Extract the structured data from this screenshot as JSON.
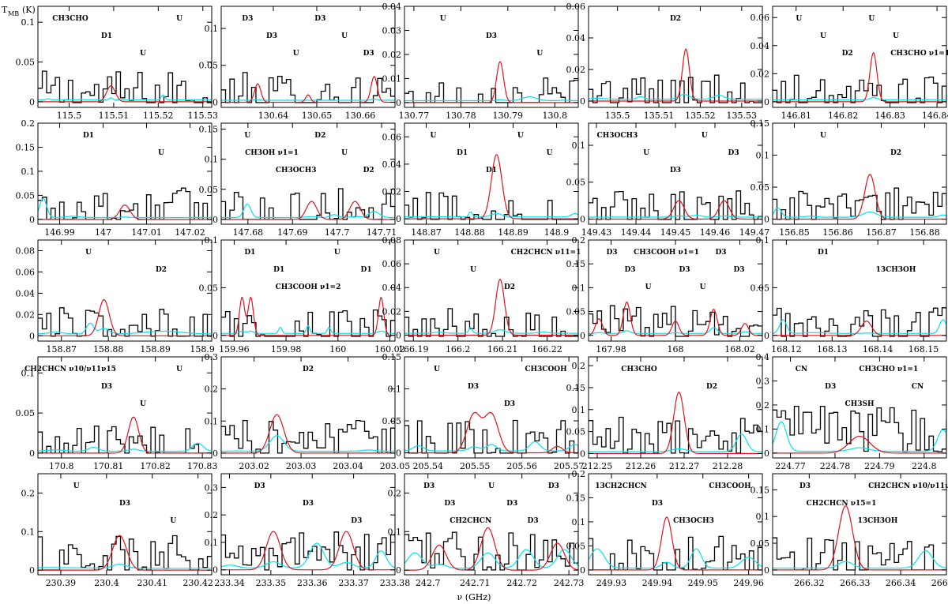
{
  "figure": {
    "y_axis_title": "T",
    "y_axis_title_sub": "MB",
    "y_axis_unit": "(K)",
    "x_axis_title": "ν (GHz)"
  },
  "colors": {
    "observed": "#000000",
    "full_model": "#00e5ee",
    "fit_model": "#e0141e",
    "frame": "#000000"
  },
  "chart_data": [
    {
      "type": "line",
      "xlim": [
        115.493,
        115.532
      ],
      "ylim": [
        -0.007,
        0.12
      ],
      "xticks": [
        115.5,
        115.51,
        115.52,
        115.53
      ],
      "yticks": [
        0,
        0.05,
        0.1
      ],
      "series": [],
      "annotations": [
        "CH3CHO",
        "D1",
        "U",
        "U"
      ]
    },
    {
      "type": "line",
      "xlim": [
        130.628,
        130.668
      ],
      "ylim": [
        -0.007,
        0.13
      ],
      "xticks": [
        130.64,
        130.65,
        130.66
      ],
      "yticks": [
        0,
        0.05,
        0.1
      ],
      "series": [],
      "annotations": [
        "D3",
        "D3",
        "U",
        "D3",
        "U",
        "D3"
      ]
    },
    {
      "type": "line",
      "xlim": [
        130.768,
        130.805
      ],
      "ylim": [
        -0.002,
        0.04
      ],
      "xticks": [
        130.77,
        130.78,
        130.79,
        130.8
      ],
      "yticks": [
        0,
        0.01,
        0.02,
        0.03,
        0.04
      ],
      "series": [],
      "annotations": [
        "U",
        "D3",
        "U"
      ]
    },
    {
      "type": "line",
      "xlim": [
        135.493,
        135.535
      ],
      "ylim": [
        -0.004,
        0.06
      ],
      "xticks": [
        135.5,
        135.51,
        135.52,
        135.53
      ],
      "yticks": [
        0,
        0.02,
        0.04,
        0.06
      ],
      "series": [],
      "annotations": [
        "D2"
      ]
    },
    {
      "type": "line",
      "xlim": [
        146.805,
        146.842
      ],
      "ylim": [
        -0.004,
        0.068
      ],
      "xticks": [
        146.81,
        146.82,
        146.83,
        146.84
      ],
      "yticks": [
        0,
        0.02,
        0.04,
        0.06
      ],
      "series": [],
      "annotations": [
        "U",
        "U",
        "D2",
        "U",
        "U",
        "CH3CHO ν1=1"
      ]
    },
    {
      "type": "line",
      "xlim": [
        146.985,
        147.025
      ],
      "ylim": [
        -0.01,
        0.2
      ],
      "xticks": [
        146.99,
        147,
        147.01,
        147.02
      ],
      "yticks": [
        0,
        0.05,
        0.1,
        0.15,
        0.2
      ],
      "series": [],
      "annotations": [
        "D1",
        "U"
      ]
    },
    {
      "type": "line",
      "xlim": [
        147.674,
        147.713
      ],
      "ylim": [
        -0.008,
        0.16
      ],
      "xticks": [
        147.68,
        147.69,
        147.7,
        147.71
      ],
      "yticks": [
        0,
        0.05,
        0.1,
        0.15
      ],
      "series": [],
      "annotations": [
        "U",
        "CH3OH ν1=1",
        "CH3OCH3",
        "D2",
        "U",
        "D2"
      ]
    },
    {
      "type": "line",
      "xlim": [
        148.865,
        148.905
      ],
      "ylim": [
        -0.004,
        0.07
      ],
      "xticks": [
        148.87,
        148.88,
        148.89,
        148.9
      ],
      "yticks": [
        0,
        0.02,
        0.04,
        0.06
      ],
      "series": [],
      "annotations": [
        "U",
        "D1",
        "D1",
        "U",
        "U"
      ]
    },
    {
      "type": "line",
      "xlim": [
        149.428,
        149.472
      ],
      "ylim": [
        -0.007,
        0.13
      ],
      "xticks": [
        149.43,
        149.44,
        149.45,
        149.46,
        149.47
      ],
      "yticks": [
        0,
        0.05,
        0.1
      ],
      "series": [],
      "annotations": [
        "CH3OCH3",
        "U",
        "D3",
        "U",
        "D3"
      ]
    },
    {
      "type": "line",
      "xlim": [
        156.845,
        156.885
      ],
      "ylim": [
        -0.008,
        0.15
      ],
      "xticks": [
        156.85,
        156.86,
        156.87,
        156.88
      ],
      "yticks": [
        0,
        0.05,
        0.1,
        0.15
      ],
      "series": [],
      "annotations": [
        "U",
        "D2"
      ]
    },
    {
      "type": "line",
      "xlim": [
        158.865,
        158.902
      ],
      "ylim": [
        -0.005,
        0.09
      ],
      "xticks": [
        158.87,
        158.88,
        158.89,
        158.9
      ],
      "yticks": [
        0,
        0.02,
        0.04,
        0.06,
        0.08
      ],
      "series": [],
      "annotations": [
        "U",
        "D2"
      ]
    },
    {
      "type": "line",
      "xlim": [
        159.955,
        160.022
      ],
      "ylim": [
        -0.006,
        0.1
      ],
      "xticks": [
        159.96,
        159.98,
        160,
        160.02
      ],
      "yticks": [
        0,
        0.05,
        0.1
      ],
      "series": [],
      "annotations": [
        "D1",
        "D1",
        "CH3COOH ν1=2",
        "U",
        "D1"
      ]
    },
    {
      "type": "line",
      "xlim": [
        166.188,
        166.227
      ],
      "ylim": [
        -0.005,
        0.08
      ],
      "xticks": [
        166.19,
        166.2,
        166.21,
        166.22
      ],
      "yticks": [
        0,
        0.02,
        0.04,
        0.06,
        0.08
      ],
      "series": [],
      "annotations": [
        "U",
        "U",
        "D2",
        "CH2CHCN ν11=1"
      ]
    },
    {
      "type": "line",
      "xlim": [
        167.973,
        168.027
      ],
      "ylim": [
        -0.012,
        0.2
      ],
      "xticks": [
        167.98,
        168,
        168.02
      ],
      "yticks": [
        0,
        0.05,
        0.1,
        0.15,
        0.2
      ],
      "series": [],
      "annotations": [
        "D3",
        "D3",
        "U",
        "CH3COOH ν1=1",
        "D3",
        "U",
        "D3",
        "D3"
      ]
    },
    {
      "type": "line",
      "xlim": [
        168.117,
        168.155
      ],
      "ylim": [
        -0.006,
        0.1
      ],
      "xticks": [
        168.12,
        168.13,
        168.14,
        168.15
      ],
      "yticks": [
        0,
        0.05,
        0.1
      ],
      "series": [],
      "annotations": [
        "D1",
        "13CH3OH"
      ]
    },
    {
      "type": "line",
      "xlim": [
        170.795,
        170.832
      ],
      "ylim": [
        -0.006,
        0.12
      ],
      "xticks": [
        170.8,
        170.81,
        170.82,
        170.83
      ],
      "yticks": [
        0,
        0.05,
        0.1
      ],
      "series": [],
      "annotations": [
        "CH2CHCN ν10/ν11ν15",
        "D3",
        "U",
        "U"
      ]
    },
    {
      "type": "line",
      "xlim": [
        203.013,
        203.05
      ],
      "ylim": [
        -0.015,
        0.3
      ],
      "xticks": [
        203.02,
        203.03,
        203.04,
        203.05
      ],
      "yticks": [
        0,
        0.1,
        0.2,
        0.3
      ],
      "series": [],
      "annotations": [
        "D2"
      ]
    },
    {
      "type": "line",
      "xlim": [
        205.535,
        205.572
      ],
      "ylim": [
        -0.008,
        0.15
      ],
      "xticks": [
        205.54,
        205.55,
        205.56,
        205.57
      ],
      "yticks": [
        0,
        0.05,
        0.1,
        0.15
      ],
      "series": [],
      "annotations": [
        "U",
        "D3",
        "D3",
        "CH3COOH"
      ]
    },
    {
      "type": "line",
      "xlim": [
        212.248,
        212.288
      ],
      "ylim": [
        -0.01,
        0.22
      ],
      "xticks": [
        212.25,
        212.26,
        212.27,
        212.28
      ],
      "yticks": [
        0,
        0.05,
        0.1,
        0.15,
        0.2
      ],
      "series": [],
      "annotations": [
        "CH3CHO",
        "D2"
      ]
    },
    {
      "type": "line",
      "xlim": [
        224.766,
        224.805
      ],
      "ylim": [
        -0.02,
        0.4
      ],
      "xticks": [
        224.77,
        224.78,
        224.79,
        224.8
      ],
      "yticks": [
        0,
        0.1,
        0.2,
        0.3,
        0.4
      ],
      "series": [],
      "annotations": [
        "CN",
        "D3",
        "CH3SH",
        "CH3CHO ν1=1",
        "CN"
      ]
    },
    {
      "type": "line",
      "xlim": [
        230.385,
        230.423
      ],
      "ylim": [
        -0.012,
        0.25
      ],
      "xticks": [
        230.39,
        230.4,
        230.41,
        230.42
      ],
      "yticks": [
        0,
        0.1,
        0.2
      ],
      "series": [],
      "annotations": [
        "U",
        "D3",
        "U"
      ]
    },
    {
      "type": "line",
      "xlim": [
        233.338,
        233.38
      ],
      "ylim": [
        -0.018,
        0.35
      ],
      "xticks": [
        233.34,
        233.35,
        233.36,
        233.37,
        233.38
      ],
      "yticks": [
        0,
        0.1,
        0.2,
        0.3
      ],
      "series": [],
      "annotations": [
        "D3",
        "D3",
        "D3"
      ]
    },
    {
      "type": "line",
      "xlim": [
        242.695,
        242.732
      ],
      "ylim": [
        -0.012,
        0.25
      ],
      "xticks": [
        242.7,
        242.71,
        242.72,
        242.73
      ],
      "yticks": [
        0,
        0.1,
        0.2
      ],
      "series": [],
      "annotations": [
        "D3",
        "D3",
        "CH2CHCN",
        "U",
        "D3",
        "D3",
        "D3"
      ]
    },
    {
      "type": "line",
      "xlim": [
        249.925,
        249.963
      ],
      "ylim": [
        -0.01,
        0.2
      ],
      "xticks": [
        249.93,
        249.94,
        249.95,
        249.96
      ],
      "yticks": [
        0,
        0.05,
        0.1,
        0.15,
        0.2
      ],
      "series": [],
      "annotations": [
        "13CH2CHCN",
        "D3",
        "CH3OCH3",
        "CH3COOH"
      ]
    },
    {
      "type": "line",
      "xlim": [
        266.312,
        266.35
      ],
      "ylim": [
        -0.009,
        0.18
      ],
      "xticks": [
        266.32,
        266.33,
        266.34,
        266.35
      ],
      "yticks": [
        0,
        0.05,
        0.1,
        0.15
      ],
      "series": [],
      "annotations": [
        "D3",
        "CH2CHCN ν15=1",
        "13CH3OH",
        "CH2CHCN ν10/ν11ν15"
      ]
    }
  ]
}
